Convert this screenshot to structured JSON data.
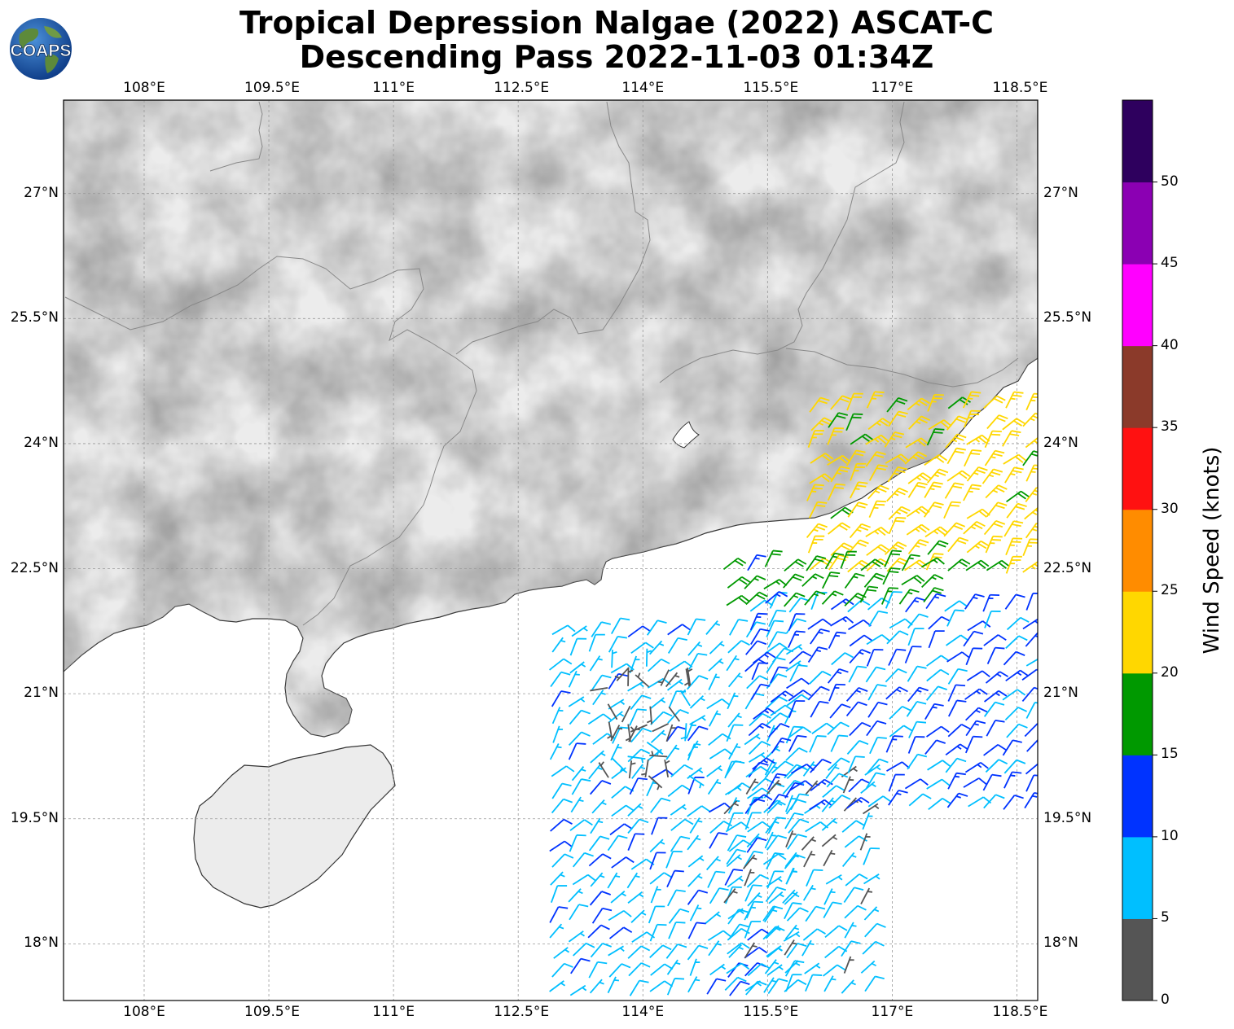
{
  "title": {
    "line1": "Tropical Depression Nalgae (2022) ASCAT-C",
    "line2": "Descending Pass 2022-11-03 01:34Z"
  },
  "logo": {
    "text": "COAPS",
    "icon": "globe-icon"
  },
  "map": {
    "lon_range": [
      107.03,
      118.75
    ],
    "lat_range": [
      17.32,
      28.12
    ],
    "lon_ticks": [
      {
        "value": 108,
        "label": "108°E"
      },
      {
        "value": 109.5,
        "label": "109.5°E"
      },
      {
        "value": 111,
        "label": "111°E"
      },
      {
        "value": 112.5,
        "label": "112.5°E"
      },
      {
        "value": 114,
        "label": "114°E"
      },
      {
        "value": 115.5,
        "label": "115.5°E"
      },
      {
        "value": 117,
        "label": "117°E"
      },
      {
        "value": 118.5,
        "label": "118.5°E"
      }
    ],
    "lat_ticks": [
      {
        "value": 27,
        "label": "27°N"
      },
      {
        "value": 25.5,
        "label": "25.5°N"
      },
      {
        "value": 24,
        "label": "24°N"
      },
      {
        "value": 22.5,
        "label": "22.5°N"
      },
      {
        "value": 21,
        "label": "21°N"
      },
      {
        "value": 19.5,
        "label": "19.5°N"
      },
      {
        "value": 18,
        "label": "18°N"
      }
    ],
    "grid": true,
    "background": "grayscale-terrain",
    "land_color": "#ececec",
    "coastline_color": "#333333"
  },
  "colorbar": {
    "label": "Wind Speed (knots)",
    "ticks": [
      "0",
      "5",
      "10",
      "15",
      "20",
      "25",
      "30",
      "35",
      "40",
      "45",
      "50"
    ],
    "bins": [
      {
        "min": 0,
        "max": 5,
        "color": "#555555"
      },
      {
        "min": 5,
        "max": 10,
        "color": "#00bfff"
      },
      {
        "min": 10,
        "max": 15,
        "color": "#0033ff"
      },
      {
        "min": 15,
        "max": 20,
        "color": "#009900"
      },
      {
        "min": 20,
        "max": 25,
        "color": "#ffd700"
      },
      {
        "min": 25,
        "max": 30,
        "color": "#ff8c00"
      },
      {
        "min": 30,
        "max": 35,
        "color": "#ff1111"
      },
      {
        "min": 35,
        "max": 40,
        "color": "#8b3a2a"
      },
      {
        "min": 40,
        "max": 45,
        "color": "#ff00ff"
      },
      {
        "min": 45,
        "max": 50,
        "color": "#8b00b3"
      },
      {
        "min": 50,
        "max": 55,
        "color": "#2e005e"
      }
    ]
  },
  "wind_regions": [
    {
      "name": "south-central swath",
      "lon_range": [
        112.9,
        115.9
      ],
      "lat_range": [
        17.4,
        21.7
      ],
      "dominant_speed_kt": 8,
      "direction_from": "NE"
    },
    {
      "name": "south-central swath east part",
      "lon_range": [
        115.0,
        116.7
      ],
      "lat_range": [
        17.3,
        20.0
      ],
      "dominant_speed_kt": 7,
      "direction_from": "NE"
    },
    {
      "name": "eastern swath",
      "lon_range": [
        115.3,
        118.7
      ],
      "lat_range": [
        19.6,
        22.0
      ],
      "dominant_speed_kt": 11,
      "direction_from": "NE"
    },
    {
      "name": "Taiwan Strait",
      "lon_range": [
        116.0,
        118.7
      ],
      "lat_range": [
        22.4,
        24.4
      ],
      "dominant_speed_kt": 22,
      "direction_from": "NE"
    },
    {
      "name": "north-east coast",
      "lon_range": [
        115.0,
        117.5
      ],
      "lat_range": [
        21.9,
        22.5
      ],
      "dominant_speed_kt": 17,
      "direction_from": "NE"
    },
    {
      "name": "calm center",
      "lon_range": [
        113.6,
        114.7
      ],
      "lat_range": [
        19.8,
        21.3
      ],
      "dominant_speed_kt": 4,
      "direction_from": "variable"
    }
  ]
}
